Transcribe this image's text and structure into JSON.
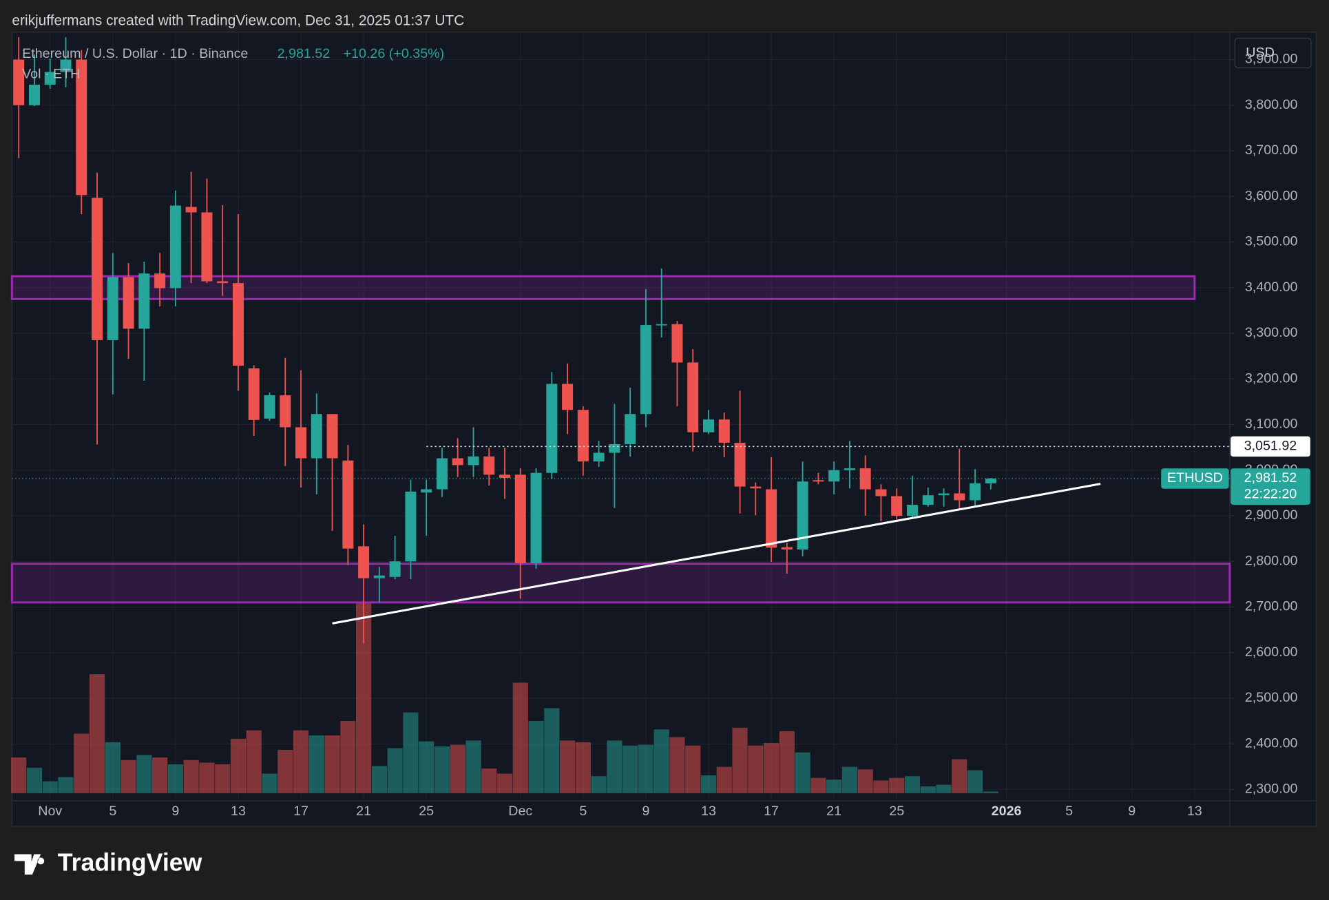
{
  "chart_data": {
    "type": "candlestick",
    "attribution": "erikjuffermans created with TradingView.com, Dec 31, 2025 01:37 UTC",
    "symbol": "Ethereum / U.S. Dollar · 1D · Binance",
    "last_price": {
      "value": 2981.52,
      "label": "2,981.52"
    },
    "change": "+10.26 (+0.35%)",
    "volume_label": "Vol · ETH",
    "currency": "USD",
    "symbol_tag": "ETHUSD",
    "countdown": "22:22:20",
    "marker_line": {
      "value": 3051.92,
      "label": "3,051.92",
      "x": "2025-11-25"
    },
    "x": [
      "2025-10-30",
      "2025-10-31",
      "2025-11-01",
      "2025-11-02",
      "2025-11-03",
      "2025-11-04",
      "2025-11-05",
      "2025-11-06",
      "2025-11-07",
      "2025-11-08",
      "2025-11-09",
      "2025-11-10",
      "2025-11-11",
      "2025-11-12",
      "2025-11-13",
      "2025-11-14",
      "2025-11-15",
      "2025-11-16",
      "2025-11-17",
      "2025-11-18",
      "2025-11-19",
      "2025-11-20",
      "2025-11-21",
      "2025-11-22",
      "2025-11-23",
      "2025-11-24",
      "2025-11-25",
      "2025-11-26",
      "2025-11-27",
      "2025-11-28",
      "2025-11-29",
      "2025-11-30",
      "2025-12-01",
      "2025-12-02",
      "2025-12-03",
      "2025-12-04",
      "2025-12-05",
      "2025-12-06",
      "2025-12-07",
      "2025-12-08",
      "2025-12-09",
      "2025-12-10",
      "2025-12-11",
      "2025-12-12",
      "2025-12-13",
      "2025-12-14",
      "2025-12-15",
      "2025-12-16",
      "2025-12-17",
      "2025-12-18",
      "2025-12-19",
      "2025-12-20",
      "2025-12-21",
      "2025-12-22",
      "2025-12-23",
      "2025-12-24",
      "2025-12-25",
      "2025-12-26",
      "2025-12-27",
      "2025-12-28",
      "2025-12-29",
      "2025-12-30",
      "2025-12-31"
    ],
    "open": [
      3900,
      3800,
      3845,
      3873,
      3900,
      3597,
      3285,
      3423,
      3310,
      3431,
      3399,
      3577,
      3565,
      3414,
      3410,
      3223,
      3113,
      3164,
      3094,
      3026,
      3123,
      3021,
      2833,
      2763,
      2766,
      2800,
      2951,
      2958,
      3026,
      3011,
      3030,
      2990,
      2990,
      2796,
      2994,
      3189,
      3132,
      3019,
      3038,
      3057,
      3123,
      3318,
      3320,
      3236,
      3083,
      3111,
      3060,
      2964,
      2958,
      2831,
      2826,
      2978,
      2975,
      3000,
      3004,
      2958,
      2943,
      2900,
      2924,
      2945,
      2949,
      2934,
      2971
    ],
    "high": [
      3949,
      3911,
      3902,
      3949,
      3921,
      3652,
      3476,
      3454,
      3457,
      3476,
      3613,
      3654,
      3639,
      3581,
      3561,
      3230,
      3170,
      3246,
      3219,
      3168,
      3123,
      3055,
      2881,
      2788,
      2856,
      2979,
      2979,
      3049,
      3070,
      3094,
      3049,
      3049,
      3004,
      3004,
      3215,
      3234,
      3140,
      3064,
      3145,
      3181,
      3397,
      3442,
      3327,
      3265,
      3132,
      3126,
      3174,
      2973,
      3028,
      2841,
      3019,
      2994,
      3019,
      3064,
      3032,
      2969,
      2960,
      2988,
      2962,
      2960,
      3047,
      3002,
      2983
    ],
    "low": [
      3684,
      3798,
      3836,
      3839,
      3561,
      3056,
      3166,
      3244,
      3196,
      3359,
      3359,
      3410,
      3410,
      3382,
      3174,
      3075,
      3108,
      3009,
      2962,
      2947,
      2867,
      2792,
      2620,
      2710,
      2761,
      2761,
      2856,
      2941,
      2985,
      2985,
      2966,
      2937,
      2718,
      2784,
      2981,
      3079,
      2988,
      3007,
      2917,
      3030,
      3094,
      3291,
      3140,
      3041,
      3079,
      3028,
      2905,
      2901,
      2799,
      2773,
      2811,
      2969,
      2947,
      2960,
      2900,
      2888,
      2892,
      2894,
      2920,
      2920,
      2915,
      2920,
      2958
    ],
    "close": [
      3800,
      3845,
      3873,
      3900,
      3603,
      3285,
      3423,
      3310,
      3431,
      3399,
      3580,
      3565,
      3414,
      3410,
      3229,
      3110,
      3164,
      3094,
      3026,
      3123,
      3026,
      2828,
      2763,
      2769,
      2800,
      2953,
      2958,
      3026,
      3011,
      3030,
      2990,
      2983,
      2796,
      2994,
      3189,
      3132,
      3019,
      3038,
      3057,
      3123,
      3318,
      3320,
      3236,
      3083,
      3111,
      3060,
      2964,
      2960,
      2830,
      2826,
      2975,
      2975,
      3000,
      3004,
      2958,
      2943,
      2900,
      2924,
      2945,
      2949,
      2934,
      2971,
      2981.52
    ],
    "volume": [
      42,
      30,
      14,
      19,
      70,
      140,
      60,
      39,
      45,
      42,
      34,
      39,
      36,
      34,
      64,
      74,
      23,
      51,
      74,
      68,
      68,
      85,
      224,
      32,
      53,
      95,
      61,
      55,
      57,
      62,
      29,
      23,
      130,
      85,
      100,
      62,
      60,
      20,
      62,
      56,
      57,
      75,
      66,
      56,
      21,
      31,
      77,
      56,
      59,
      73,
      48,
      18,
      16,
      31,
      28,
      15,
      18,
      20,
      8,
      10,
      40,
      27,
      2
    ],
    "up_color": "#26a69a",
    "down_color": "#ef5350",
    "zones": [
      {
        "low": 3375,
        "high": 3425,
        "end": "2026-01-13"
      },
      {
        "low": 2710,
        "high": 2795
      }
    ],
    "trendline": {
      "x": [
        "2025-11-19",
        "2026-01-07"
      ],
      "y": [
        2664,
        2970
      ]
    },
    "ylim": [
      2275,
      3960
    ],
    "yticks": [
      {
        "value": 2300,
        "label": "2,300.00"
      },
      {
        "value": 2400,
        "label": "2,400.00"
      },
      {
        "value": 2500,
        "label": "2,500.00"
      },
      {
        "value": 2600,
        "label": "2,600.00"
      },
      {
        "value": 2700,
        "label": "2,700.00"
      },
      {
        "value": 2800,
        "label": "2,800.00"
      },
      {
        "value": 2900,
        "label": "2,900.00"
      },
      {
        "value": 3000,
        "label": "3,000.00"
      },
      {
        "value": 3100,
        "label": "3,100.00"
      },
      {
        "value": 3200,
        "label": "3,200.00"
      },
      {
        "value": 3300,
        "label": "3,300.00"
      },
      {
        "value": 3400,
        "label": "3,400.00"
      },
      {
        "value": 3500,
        "label": "3,500.00"
      },
      {
        "value": 3600,
        "label": "3,600.00"
      },
      {
        "value": 3700,
        "label": "3,700.00"
      },
      {
        "value": 3800,
        "label": "3,800.00"
      },
      {
        "value": 3900,
        "label": "3,900.00"
      }
    ],
    "xticks": [
      {
        "value": "2025-11-01",
        "label": "Nov"
      },
      {
        "value": "2025-11-05",
        "label": "5"
      },
      {
        "value": "2025-11-09",
        "label": "9"
      },
      {
        "value": "2025-11-13",
        "label": "13"
      },
      {
        "value": "2025-11-17",
        "label": "17"
      },
      {
        "value": "2025-11-21",
        "label": "21"
      },
      {
        "value": "2025-11-25",
        "label": "25"
      },
      {
        "value": "2025-12-01",
        "label": "Dec"
      },
      {
        "value": "2025-12-05",
        "label": "5"
      },
      {
        "value": "2025-12-09",
        "label": "9"
      },
      {
        "value": "2025-12-13",
        "label": "13"
      },
      {
        "value": "2025-12-17",
        "label": "17"
      },
      {
        "value": "2025-12-21",
        "label": "21"
      },
      {
        "value": "2025-12-25",
        "label": "25"
      },
      {
        "value": "2026-01-01",
        "label": "2026"
      },
      {
        "value": "2026-01-05",
        "label": "5"
      },
      {
        "value": "2026-01-09",
        "label": "9"
      },
      {
        "value": "2026-01-13",
        "label": "13"
      }
    ],
    "grid": true
  },
  "footer": {
    "brand": "TradingView"
  }
}
